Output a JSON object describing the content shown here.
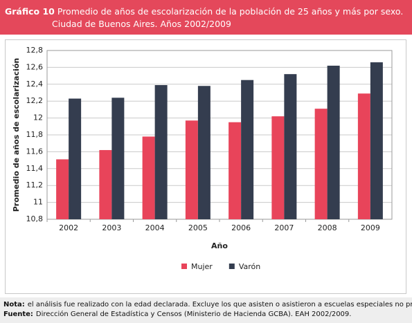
{
  "header": {
    "label": "Gráfico 10",
    "title": "Promedio de años de escolarización de la población de 25 años y más por sexo.",
    "subtitle": "Ciudad de Buenos Aires. Años 2002/2009"
  },
  "chart_data": {
    "type": "bar",
    "y_label": "Promedio de años de escolarización",
    "x_label": "Año",
    "categories": [
      "2002",
      "2003",
      "2004",
      "2005",
      "2006",
      "2007",
      "2008",
      "2009"
    ],
    "series": [
      {
        "name": "Mujer",
        "color": "#e8445a",
        "values": [
          11.51,
          11.62,
          11.78,
          11.97,
          11.95,
          12.02,
          12.11,
          12.29
        ]
      },
      {
        "name": "Varón",
        "color": "#343d4f",
        "values": [
          12.23,
          12.24,
          12.39,
          12.38,
          12.45,
          12.52,
          12.62,
          12.66
        ]
      }
    ],
    "ylim": [
      10.8,
      12.8
    ],
    "yticks": [
      {
        "value": 10.8,
        "label": "10,8"
      },
      11,
      {
        "value": 11.2,
        "label": "11,2"
      },
      {
        "value": 11.4,
        "label": "11,4"
      },
      {
        "value": 11.6,
        "label": "11,6"
      },
      {
        "value": 11.8,
        "label": "11,8"
      },
      12,
      {
        "value": 12.2,
        "label": "12,2"
      },
      {
        "value": 12.4,
        "label": "12,4"
      },
      {
        "value": 12.6,
        "label": "12,6"
      },
      {
        "value": 12.8,
        "label": "12,8"
      }
    ],
    "grid": true
  },
  "notes": {
    "nota_label": "Nota:",
    "nota": "el análisis fue realizado con la edad declarada. Excluye los que asisten o asistieron a escuelas especiales no primarias.",
    "fuente_label": "Fuente:",
    "fuente": "Dirección General de Estadística y Censos (Ministerio de Hacienda GCBA). EAH 2002/2009."
  }
}
